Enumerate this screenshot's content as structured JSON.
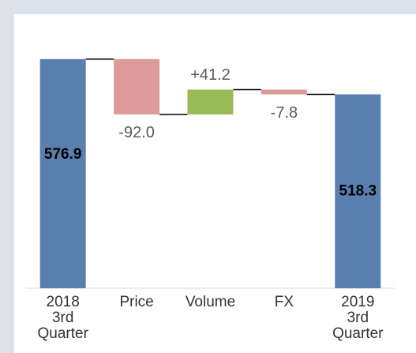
{
  "chart_data": {
    "type": "waterfall",
    "categories": [
      "2018 3rd Quarter",
      "Price",
      "Volume",
      "FX",
      "2019 3rd Quarter"
    ],
    "values": [
      576.9,
      -92.0,
      41.2,
      -7.8,
      518.3
    ],
    "value_labels": [
      "576.9",
      "-92.0",
      "+41.2",
      "-7.8",
      "518.3"
    ],
    "measure": [
      "total",
      "relative",
      "relative",
      "relative",
      "total"
    ],
    "colors": {
      "total": "#5a7fae",
      "increase": "#9bbb59",
      "decrease": "#dc9a9a"
    },
    "ylim": [
      196,
      578
    ]
  }
}
